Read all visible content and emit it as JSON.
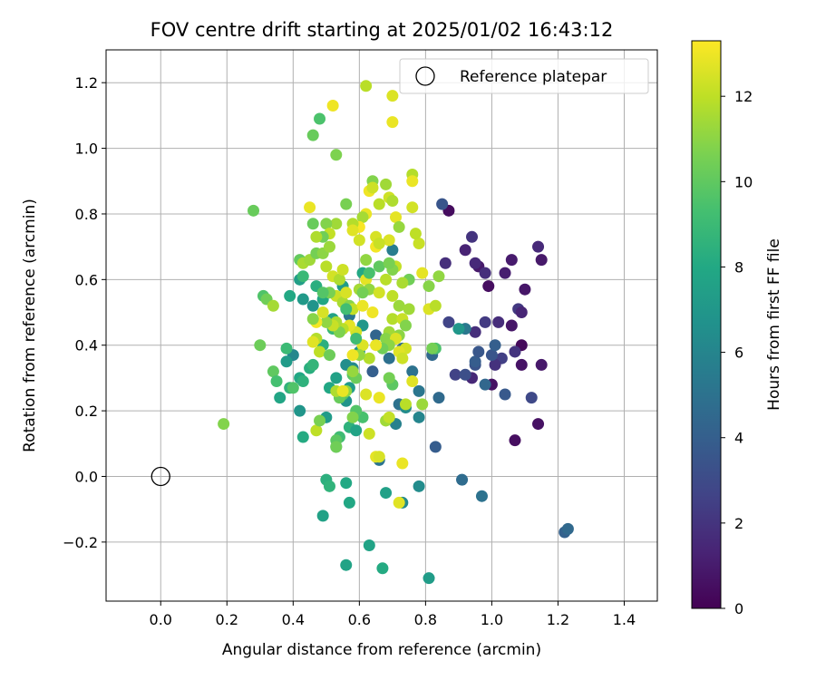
{
  "chart_data": {
    "type": "scatter",
    "title": "FOV centre drift starting at 2025/01/02 16:43:12",
    "xlabel": "Angular distance from reference (arcmin)",
    "ylabel": "Rotation from reference (arcmin)",
    "xlim": [
      -0.165,
      1.5
    ],
    "ylim": [
      -0.38,
      1.3
    ],
    "xticks": [
      0.0,
      0.2,
      0.4,
      0.6,
      0.8,
      1.0,
      1.2,
      1.4
    ],
    "xtick_labels": [
      "0.0",
      "0.2",
      "0.4",
      "0.6",
      "0.8",
      "1.0",
      "1.2",
      "1.4"
    ],
    "yticks": [
      -0.2,
      0.0,
      0.2,
      0.4,
      0.6,
      0.8,
      1.0,
      1.2
    ],
    "ytick_labels": [
      "−0.2",
      "0.0",
      "0.2",
      "0.4",
      "0.6",
      "0.8",
      "1.0",
      "1.2"
    ],
    "grid": true,
    "legend": {
      "placement": "top-right",
      "entries": [
        "Reference platepar"
      ]
    },
    "reference": {
      "x": 0.0,
      "y": 0.0,
      "label": "Reference platepar"
    },
    "colorbar": {
      "label": "Hours from first FF file",
      "range": [
        0,
        13.3
      ],
      "ticks": [
        0,
        2,
        4,
        6,
        8,
        10,
        12
      ],
      "tick_labels": [
        "0",
        "2",
        "4",
        "6",
        "8",
        "10",
        "12"
      ],
      "colormap": "viridis"
    },
    "points": [
      [
        0.87,
        0.81,
        0.4
      ],
      [
        0.96,
        0.64,
        0.9
      ],
      [
        0.99,
        0.58,
        0.5
      ],
      [
        1.04,
        0.62,
        1.1
      ],
      [
        0.92,
        0.69,
        1.3
      ],
      [
        0.95,
        0.65,
        1.6
      ],
      [
        0.98,
        0.62,
        1.8
      ],
      [
        0.94,
        0.73,
        2.0
      ],
      [
        1.0,
        0.28,
        0.6
      ],
      [
        1.07,
        0.11,
        0.5
      ],
      [
        1.09,
        0.4,
        0.3
      ],
      [
        1.09,
        0.34,
        0.7
      ],
      [
        1.1,
        0.57,
        0.8
      ],
      [
        1.15,
        0.34,
        0.9
      ],
      [
        1.14,
        0.16,
        0.6
      ],
      [
        1.14,
        0.7,
        1.6
      ],
      [
        1.15,
        0.66,
        0.9
      ],
      [
        1.06,
        0.66,
        1.0
      ],
      [
        1.08,
        0.51,
        2.2
      ],
      [
        1.07,
        0.38,
        2.0
      ],
      [
        1.06,
        0.46,
        0.8
      ],
      [
        1.02,
        0.47,
        1.7
      ],
      [
        1.03,
        0.36,
        2.5
      ],
      [
        1.01,
        0.34,
        1.9
      ],
      [
        0.94,
        0.3,
        1.5
      ],
      [
        0.98,
        0.47,
        2.3
      ],
      [
        0.95,
        0.44,
        1.8
      ],
      [
        0.87,
        0.47,
        2.7
      ],
      [
        0.89,
        0.31,
        2.6
      ],
      [
        0.92,
        0.31,
        3.2
      ],
      [
        0.95,
        0.34,
        3.4
      ],
      [
        0.95,
        0.35,
        3.9
      ],
      [
        0.96,
        0.38,
        3.6
      ],
      [
        1.0,
        0.37,
        3.5
      ],
      [
        1.01,
        0.4,
        4.0
      ],
      [
        1.04,
        0.25,
        3.7
      ],
      [
        1.12,
        0.24,
        2.9
      ],
      [
        1.09,
        0.5,
        1.4
      ],
      [
        0.86,
        0.65,
        1.8
      ],
      [
        0.85,
        0.83,
        3.5
      ],
      [
        0.92,
        0.45,
        5.3
      ],
      [
        0.84,
        0.24,
        4.6
      ],
      [
        0.83,
        0.09,
        3.9
      ],
      [
        0.91,
        -0.01,
        4.7
      ],
      [
        0.97,
        -0.06,
        5.0
      ],
      [
        1.22,
        -0.17,
        4.1
      ],
      [
        1.23,
        -0.16,
        4.5
      ],
      [
        0.98,
        0.28,
        4.4
      ],
      [
        0.9,
        0.45,
        7.0
      ],
      [
        0.82,
        0.37,
        4.5
      ],
      [
        0.83,
        0.39,
        9.5
      ],
      [
        0.78,
        0.26,
        5.2
      ],
      [
        0.76,
        0.32,
        5.0
      ],
      [
        0.78,
        0.18,
        6.0
      ],
      [
        0.72,
        0.22,
        5.0
      ],
      [
        0.74,
        0.21,
        6.4
      ],
      [
        0.73,
        0.39,
        4.7
      ],
      [
        0.7,
        0.69,
        5.6
      ],
      [
        0.69,
        0.36,
        4.9
      ],
      [
        0.65,
        0.43,
        4.3
      ],
      [
        0.64,
        0.32,
        4.0
      ],
      [
        0.66,
        0.05,
        5.1
      ],
      [
        0.71,
        0.16,
        5.8
      ],
      [
        0.73,
        -0.08,
        6.3
      ],
      [
        0.78,
        -0.03,
        6.4
      ],
      [
        0.81,
        -0.31,
        7.3
      ],
      [
        0.68,
        -0.05,
        7.5
      ],
      [
        0.67,
        -0.28,
        8.1
      ],
      [
        0.63,
        -0.21,
        7.7
      ],
      [
        0.57,
        -0.08,
        7.9
      ],
      [
        0.56,
        -0.27,
        7.7
      ],
      [
        0.56,
        -0.02,
        8.0
      ],
      [
        0.49,
        -0.12,
        7.6
      ],
      [
        0.5,
        -0.01,
        8.4
      ],
      [
        0.51,
        -0.03,
        8.6
      ],
      [
        0.5,
        0.18,
        7.2
      ],
      [
        0.53,
        0.09,
        8.8
      ],
      [
        0.54,
        0.12,
        9.1
      ],
      [
        0.57,
        0.15,
        8.5
      ],
      [
        0.59,
        0.14,
        7.7
      ],
      [
        0.61,
        0.18,
        9.4
      ],
      [
        0.59,
        0.2,
        9.7
      ],
      [
        0.57,
        0.27,
        7.2
      ],
      [
        0.56,
        0.23,
        6.8
      ],
      [
        0.58,
        0.33,
        6.2
      ],
      [
        0.56,
        0.34,
        6.5
      ],
      [
        0.57,
        0.49,
        5.2
      ],
      [
        0.6,
        0.38,
        6.7
      ],
      [
        0.61,
        0.46,
        7.0
      ],
      [
        0.61,
        0.62,
        8.0
      ],
      [
        0.55,
        0.58,
        7.3
      ],
      [
        0.52,
        0.48,
        7.6
      ],
      [
        0.49,
        0.54,
        7.9
      ],
      [
        0.47,
        0.58,
        8.3
      ],
      [
        0.46,
        0.52,
        6.8
      ],
      [
        0.43,
        0.54,
        7.1
      ],
      [
        0.42,
        0.6,
        7.4
      ],
      [
        0.39,
        0.55,
        8.0
      ],
      [
        0.4,
        0.37,
        6.1
      ],
      [
        0.38,
        0.35,
        7.2
      ],
      [
        0.36,
        0.24,
        7.8
      ],
      [
        0.39,
        0.27,
        8.6
      ],
      [
        0.42,
        0.2,
        6.9
      ],
      [
        0.43,
        0.12,
        8.1
      ],
      [
        0.42,
        0.3,
        7.9
      ],
      [
        0.43,
        0.29,
        8.5
      ],
      [
        0.45,
        0.33,
        8.3
      ],
      [
        0.46,
        0.34,
        8.7
      ],
      [
        0.49,
        0.4,
        8.4
      ],
      [
        0.52,
        0.45,
        8.9
      ],
      [
        0.53,
        0.3,
        7.6
      ],
      [
        0.51,
        0.27,
        7.9
      ],
      [
        0.55,
        0.25,
        9.6
      ],
      [
        0.54,
        0.24,
        10.2
      ],
      [
        0.56,
        0.26,
        11.1
      ],
      [
        0.58,
        0.31,
        9.8
      ],
      [
        0.59,
        0.3,
        10.3
      ],
      [
        0.47,
        0.14,
        12.0
      ],
      [
        0.48,
        0.17,
        10.6
      ],
      [
        0.53,
        0.11,
        9.9
      ],
      [
        0.58,
        0.18,
        10.8
      ],
      [
        0.63,
        0.13,
        12.3
      ],
      [
        0.65,
        0.06,
        12.8
      ],
      [
        0.66,
        0.06,
        12.5
      ],
      [
        0.68,
        0.17,
        11.4
      ],
      [
        0.69,
        0.18,
        12.1
      ],
      [
        0.7,
        0.28,
        9.9
      ],
      [
        0.72,
        -0.08,
        12.7
      ],
      [
        0.73,
        0.04,
        12.9
      ],
      [
        0.69,
        0.3,
        10.5
      ],
      [
        0.72,
        0.43,
        11.0
      ],
      [
        0.74,
        0.39,
        12.4
      ],
      [
        0.76,
        0.29,
        12.7
      ],
      [
        0.79,
        0.22,
        11.3
      ],
      [
        0.81,
        0.51,
        12.6
      ],
      [
        0.83,
        0.52,
        11.9
      ],
      [
        0.84,
        0.61,
        11.1
      ],
      [
        0.81,
        0.58,
        10.9
      ],
      [
        0.79,
        0.62,
        12.8
      ],
      [
        0.78,
        0.71,
        12.2
      ],
      [
        0.77,
        0.74,
        12.0
      ],
      [
        0.76,
        0.82,
        12.4
      ],
      [
        0.76,
        0.92,
        11.8
      ],
      [
        0.76,
        0.9,
        12.9
      ],
      [
        0.75,
        0.6,
        10.4
      ],
      [
        0.73,
        0.59,
        11.6
      ],
      [
        0.71,
        0.64,
        12.1
      ],
      [
        0.7,
        0.63,
        10.8
      ],
      [
        0.69,
        0.85,
        12.3
      ],
      [
        0.7,
        0.84,
        11.7
      ],
      [
        0.71,
        0.79,
        12.8
      ],
      [
        0.72,
        0.76,
        11.2
      ],
      [
        0.69,
        0.72,
        12.6
      ],
      [
        0.68,
        0.89,
        11.4
      ],
      [
        0.66,
        0.83,
        11.9
      ],
      [
        0.65,
        0.73,
        12.5
      ],
      [
        0.65,
        0.7,
        13.1
      ],
      [
        0.66,
        0.71,
        12.2
      ],
      [
        0.64,
        0.9,
        10.8
      ],
      [
        0.63,
        0.87,
        13.0
      ],
      [
        0.64,
        0.88,
        12.3
      ],
      [
        0.62,
        0.8,
        12.9
      ],
      [
        0.61,
        0.79,
        11.5
      ],
      [
        0.6,
        0.76,
        13.2
      ],
      [
        0.6,
        0.72,
        12.4
      ],
      [
        0.58,
        0.77,
        11.8
      ],
      [
        0.58,
        0.75,
        12.7
      ],
      [
        0.56,
        0.83,
        10.6
      ],
      [
        0.53,
        0.77,
        11.4
      ],
      [
        0.5,
        0.77,
        10.8
      ],
      [
        0.51,
        0.74,
        12.1
      ],
      [
        0.49,
        0.73,
        10.4
      ],
      [
        0.47,
        0.73,
        11.7
      ],
      [
        0.46,
        0.77,
        10.2
      ],
      [
        0.45,
        0.82,
        12.9
      ],
      [
        0.46,
        1.04,
        10.2
      ],
      [
        0.48,
        1.09,
        9.5
      ],
      [
        0.53,
        0.98,
        10.7
      ],
      [
        0.52,
        1.13,
        13.0
      ],
      [
        0.62,
        1.19,
        11.9
      ],
      [
        0.7,
        1.16,
        12.6
      ],
      [
        0.7,
        1.08,
        12.9
      ],
      [
        0.28,
        0.81,
        10.2
      ],
      [
        0.19,
        0.16,
        10.8
      ],
      [
        0.31,
        0.55,
        9.6
      ],
      [
        0.32,
        0.54,
        10.4
      ],
      [
        0.34,
        0.52,
        11.5
      ],
      [
        0.3,
        0.4,
        10.3
      ],
      [
        0.34,
        0.32,
        10.0
      ],
      [
        0.35,
        0.29,
        9.3
      ],
      [
        0.38,
        0.39,
        9.0
      ],
      [
        0.4,
        0.27,
        9.6
      ],
      [
        0.43,
        0.61,
        8.9
      ],
      [
        0.42,
        0.66,
        10.1
      ],
      [
        0.43,
        0.65,
        11.6
      ],
      [
        0.45,
        0.66,
        11.4
      ],
      [
        0.47,
        0.68,
        10.5
      ],
      [
        0.49,
        0.68,
        11.0
      ],
      [
        0.51,
        0.7,
        11.3
      ],
      [
        0.5,
        0.64,
        11.9
      ],
      [
        0.52,
        0.61,
        12.4
      ],
      [
        0.54,
        0.6,
        11.7
      ],
      [
        0.55,
        0.63,
        12.3
      ],
      [
        0.53,
        0.55,
        12.2
      ],
      [
        0.55,
        0.53,
        11.6
      ],
      [
        0.57,
        0.52,
        10.9
      ],
      [
        0.56,
        0.56,
        12.5
      ],
      [
        0.58,
        0.51,
        12.1
      ],
      [
        0.6,
        0.57,
        11.5
      ],
      [
        0.62,
        0.6,
        12.8
      ],
      [
        0.63,
        0.57,
        11.1
      ],
      [
        0.61,
        0.52,
        12.9
      ],
      [
        0.64,
        0.5,
        13.0
      ],
      [
        0.66,
        0.56,
        12.4
      ],
      [
        0.68,
        0.6,
        11.9
      ],
      [
        0.7,
        0.55,
        12.0
      ],
      [
        0.72,
        0.52,
        11.3
      ],
      [
        0.7,
        0.48,
        11.8
      ],
      [
        0.69,
        0.44,
        11.4
      ],
      [
        0.68,
        0.42,
        10.9
      ],
      [
        0.71,
        0.42,
        12.6
      ],
      [
        0.73,
        0.48,
        12.2
      ],
      [
        0.75,
        0.51,
        11.4
      ],
      [
        0.74,
        0.46,
        10.8
      ],
      [
        0.72,
        0.38,
        12.7
      ],
      [
        0.73,
        0.36,
        12.3
      ],
      [
        0.69,
        0.4,
        11.0
      ],
      [
        0.67,
        0.39,
        10.4
      ],
      [
        0.65,
        0.4,
        12.9
      ],
      [
        0.63,
        0.36,
        11.8
      ],
      [
        0.61,
        0.4,
        12.6
      ],
      [
        0.6,
        0.37,
        11.2
      ],
      [
        0.58,
        0.37,
        13.0
      ],
      [
        0.59,
        0.44,
        12.4
      ],
      [
        0.57,
        0.46,
        12.8
      ],
      [
        0.55,
        0.45,
        11.9
      ],
      [
        0.54,
        0.44,
        10.7
      ],
      [
        0.53,
        0.47,
        11.6
      ],
      [
        0.52,
        0.46,
        12.2
      ],
      [
        0.5,
        0.47,
        11.1
      ],
      [
        0.49,
        0.5,
        12.5
      ],
      [
        0.47,
        0.47,
        13.1
      ],
      [
        0.46,
        0.48,
        10.9
      ],
      [
        0.48,
        0.38,
        12.0
      ],
      [
        0.47,
        0.42,
        11.8
      ],
      [
        0.46,
        0.41,
        12.7
      ],
      [
        0.51,
        0.56,
        10.6
      ],
      [
        0.62,
        0.25,
        12.6
      ],
      [
        0.66,
        0.24,
        12.9
      ],
      [
        0.74,
        0.22,
        11.9
      ],
      [
        0.82,
        0.39,
        10.5
      ],
      [
        0.58,
        0.32,
        11.2
      ],
      [
        0.53,
        0.26,
        11.7
      ],
      [
        0.55,
        0.26,
        12.9
      ],
      [
        0.51,
        0.37,
        10.3
      ],
      [
        0.56,
        0.51,
        9.2
      ],
      [
        0.49,
        0.56,
        9.7
      ],
      [
        0.59,
        0.42,
        9.1
      ],
      [
        0.63,
        0.62,
        9.4
      ],
      [
        0.66,
        0.64,
        10.0
      ],
      [
        0.61,
        0.56,
        10.5
      ],
      [
        0.62,
        0.66,
        11.1
      ],
      [
        0.69,
        0.65,
        10.6
      ],
      [
        0.53,
        0.09,
        10.4
      ]
    ]
  }
}
